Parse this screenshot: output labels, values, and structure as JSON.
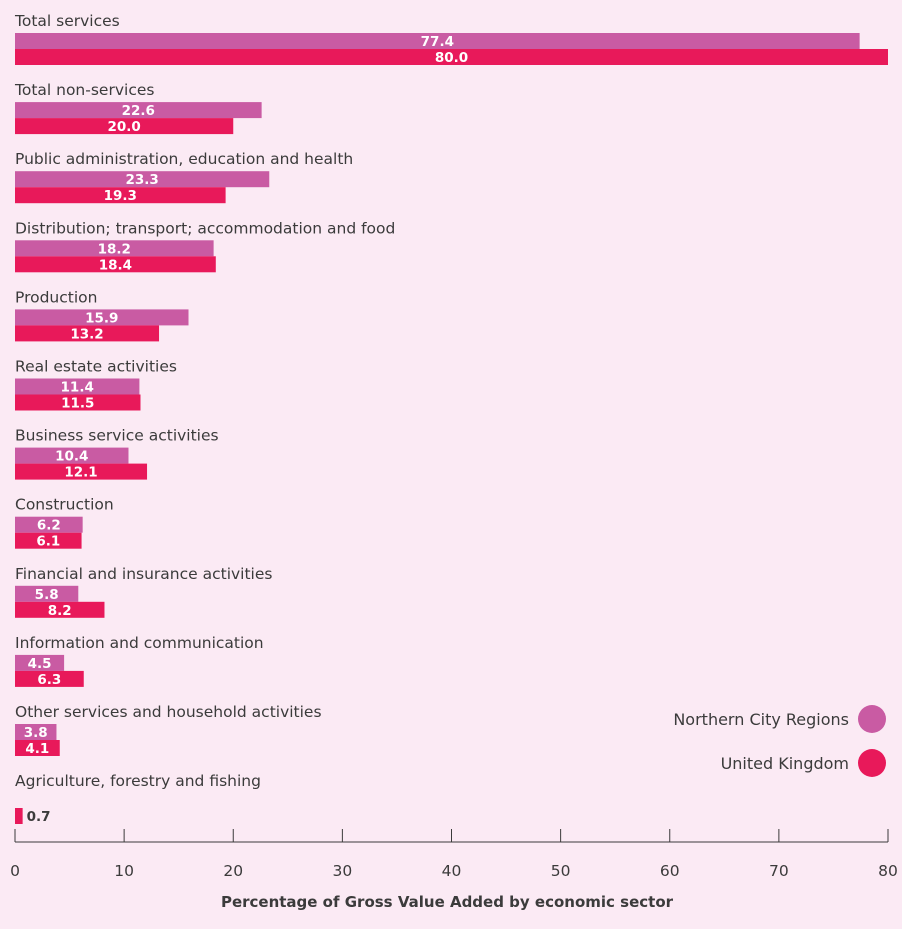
{
  "chart_data": {
    "type": "bar",
    "orientation": "horizontal",
    "xlabel": "Percentage of Gross Value Added by economic sector",
    "xlim": [
      0,
      80
    ],
    "xticks": [
      "0",
      "10",
      "20",
      "30",
      "40",
      "50",
      "60",
      "70",
      "80"
    ],
    "categories": [
      "Total services",
      "Total non-services",
      "Public administration, education and health",
      "Distribution; transport; accommodation and food",
      "Production",
      "Real estate activities",
      "Business service activities",
      "Construction",
      "Financial and insurance activities",
      "Information and communication",
      "Other services and household activities",
      "Agriculture, forestry and fishing"
    ],
    "series": [
      {
        "name": "Northern City Regions",
        "color": "#c95ba3",
        "values": [
          77.4,
          22.6,
          23.3,
          18.2,
          15.9,
          11.4,
          10.4,
          6.2,
          5.8,
          4.5,
          3.8,
          null
        ],
        "labels": [
          "77.4",
          "22.6",
          "23.3",
          "18.2",
          "15.9",
          "11.4",
          "10.4",
          "6.2",
          "5.8",
          "4.5",
          "3.8",
          ""
        ]
      },
      {
        "name": "United Kingdom",
        "color": "#e8195a",
        "values": [
          80.0,
          20.0,
          19.3,
          18.4,
          13.2,
          11.5,
          12.1,
          6.1,
          8.2,
          6.3,
          4.1,
          0.7
        ],
        "labels": [
          "80.0",
          "20.0",
          "19.3",
          "18.4",
          "13.2",
          "11.5",
          "12.1",
          "6.1",
          "8.2",
          "6.3",
          "4.1",
          "0.7"
        ]
      }
    ],
    "legend": "right",
    "grid": false
  }
}
